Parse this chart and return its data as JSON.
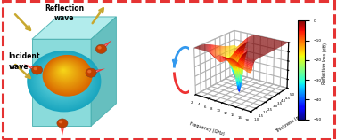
{
  "ylabel": "Reflection loss (dB)",
  "xlabel_freq": "Frequency (GHz)",
  "xlabel_thick": "Thickness (mm)",
  "freq_range": [
    2,
    18
  ],
  "thick_range": [
    1,
    5
  ],
  "zlim": [
    -50,
    0
  ],
  "colorbar_ticks": [
    0.0,
    -10.0,
    -20.0,
    -30.0,
    -40.0,
    -50.0
  ],
  "border_color": "#e53333",
  "cube_front_color": "#7dd8d8",
  "cube_top_color": "#aaeaea",
  "cube_right_color": "#55b8b8",
  "sphere_outer_color": "#66cccc",
  "sphere_inner_color": "#d4aa00",
  "nano_body_color": "#c04000",
  "flame_color": "#ff2020",
  "arrow_incident_color": "#c8a830",
  "arrow_reflect_color": "#c8a830",
  "circ_arrow_top_color": "#3399ee",
  "circ_arrow_bot_color": "#ee3333",
  "incident_text": "Incident\nwave",
  "reflect_text": "Reflection\nwave"
}
